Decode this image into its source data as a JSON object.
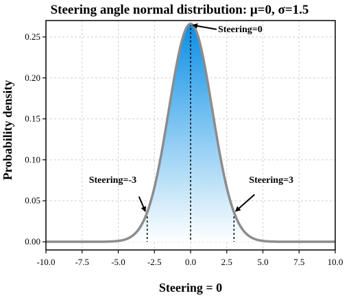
{
  "chart_data": {
    "type": "area",
    "title": "Steering angle normal distribution: μ=0, σ=1.5",
    "xlabel": "Steering = 0",
    "ylabel": "Probability density",
    "xlim": [
      -10,
      10
    ],
    "ylim": [
      -0.01,
      0.27
    ],
    "x_ticks": [
      -10.0,
      -7.5,
      -5.0,
      -2.5,
      0.0,
      2.5,
      5.0,
      7.5,
      10.0
    ],
    "x_tick_labels": [
      "-10.0",
      "-7.5",
      "-5.0",
      "-2.5",
      "0.0",
      "2.5",
      "5.0",
      "7.5",
      "10.0"
    ],
    "y_ticks": [
      0.0,
      0.05,
      0.1,
      0.15,
      0.2,
      0.25
    ],
    "y_tick_labels": [
      "0.00",
      "0.05",
      "0.10",
      "0.15",
      "0.20",
      "0.25"
    ],
    "grid": true,
    "series": [
      {
        "distribution": "normal",
        "mu": 0,
        "sigma": 1.5,
        "line_color": "#8c8c8c",
        "fill_top_color": "#0a8de4",
        "fill_bottom_color": "#ffffff"
      }
    ],
    "markers": [
      {
        "x": -3,
        "label": "Steering=-3"
      },
      {
        "x": 0,
        "label": "Steering=0"
      },
      {
        "x": 3,
        "label": "Steering=3"
      }
    ]
  }
}
